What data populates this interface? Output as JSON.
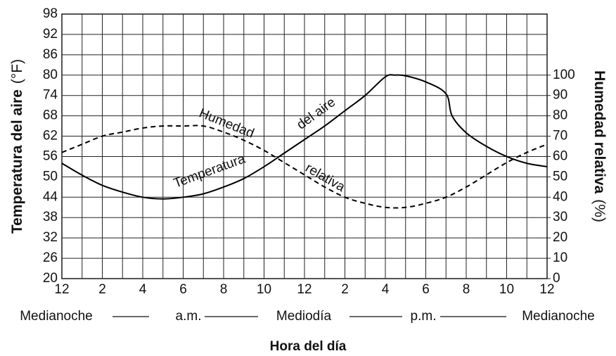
{
  "chart_data": {
    "type": "line",
    "ylabel": "Temperatura del aire",
    "yunit": "(°F)",
    "y2label": "Humedad relativa",
    "y2unit": "(%)",
    "xlabel": "Hora del día",
    "periods": [
      "Medianoche",
      "a.m.",
      "Mediodía",
      "p.m.",
      "Medianoche"
    ],
    "annotations": [
      "Humedad",
      "del aire",
      "Temperatura",
      "relativa"
    ],
    "xlim": [
      0,
      24
    ],
    "xticks": [
      {
        "value": 0,
        "label": "12"
      },
      2,
      4,
      6,
      8,
      10,
      {
        "value": 12,
        "label": "12"
      },
      {
        "value": 14,
        "label": "2"
      },
      {
        "value": 16,
        "label": "4"
      },
      {
        "value": 18,
        "label": "6"
      },
      {
        "value": 20,
        "label": "8"
      },
      {
        "value": 22,
        "label": "10"
      },
      {
        "value": 24,
        "label": "12"
      }
    ],
    "xgrid": [
      1,
      3,
      5,
      7,
      9,
      11,
      13,
      15,
      17,
      19,
      21,
      23
    ],
    "ylim": [
      20,
      98
    ],
    "yticks": [
      20,
      26,
      32,
      38,
      44,
      50,
      56,
      62,
      68,
      74,
      80,
      86,
      92,
      98
    ],
    "y2lim": [
      0,
      130
    ],
    "y2ticks": [
      0,
      10,
      20,
      30,
      40,
      50,
      60,
      70,
      80,
      90,
      100
    ],
    "grid": true,
    "series": [
      {
        "name": "Temperatura",
        "color": "#000000",
        "dash": false,
        "x": [
          0,
          1,
          2,
          3,
          4,
          5,
          6,
          7,
          8,
          9,
          10,
          11,
          12,
          13,
          14,
          15,
          16,
          16.5,
          17,
          18,
          19,
          19.3,
          20,
          21,
          22,
          23,
          24
        ],
        "values": [
          54,
          50.5,
          47.5,
          45.5,
          44,
          43.5,
          44,
          45,
          47,
          49.5,
          53,
          57,
          61,
          65,
          69.5,
          74,
          79.5,
          80,
          79.8,
          78,
          74.5,
          68,
          63,
          59,
          56,
          54,
          53
        ]
      },
      {
        "name": "Humedad relativa",
        "color": "#000000",
        "dash": true,
        "axis": "y2",
        "x": [
          0,
          1,
          2,
          3,
          4,
          5,
          6,
          7,
          8,
          9,
          10,
          11,
          12,
          13,
          14,
          15,
          16,
          17,
          18,
          19,
          20,
          21,
          22,
          23,
          24
        ],
        "values": [
          62,
          66,
          70,
          72,
          74,
          75,
          75,
          75,
          72,
          68,
          63,
          57,
          51,
          45,
          40,
          37,
          35,
          35,
          37,
          40,
          45,
          51,
          57,
          62,
          66
        ]
      }
    ]
  }
}
